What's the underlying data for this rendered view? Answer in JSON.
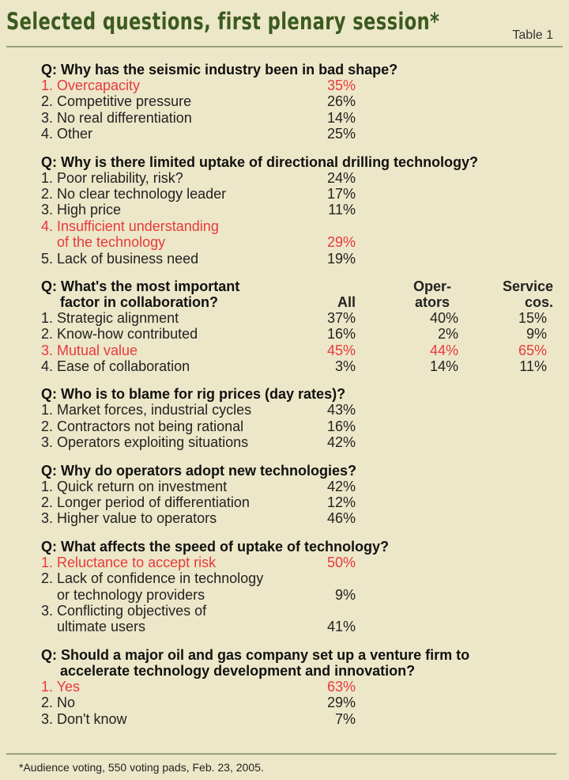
{
  "title": "Selected questions, first plenary session*",
  "table_label": "Table 1",
  "footnote": "*Audience voting, 550 voting pads, Feb. 23, 2005.",
  "q1": {
    "question": "Q: Why has the seismic industry been in bad shape?",
    "rows": [
      {
        "label": "1. Overcapacity",
        "value": "35%"
      },
      {
        "label": "2. Competitive pressure",
        "value": "26%"
      },
      {
        "label": "3. No real differentiation",
        "value": "14%"
      },
      {
        "label": "4. Other",
        "value": "25%"
      }
    ]
  },
  "q2": {
    "question": "Q: Why is there limited uptake of directional drilling technology?",
    "rows": [
      {
        "label": "1. Poor reliability, risk?",
        "value": "24%"
      },
      {
        "label": "2. No clear technology leader",
        "value": "17%"
      },
      {
        "label": "3. High price",
        "value": "11%"
      },
      {
        "label": "4. Insufficient understanding",
        "value": ""
      },
      {
        "label": "    of the technology",
        "value": "29%"
      },
      {
        "label": "5. Lack of business need",
        "value": "19%"
      }
    ]
  },
  "q3": {
    "question_line1": "Q: What's the most important",
    "question_line2": "factor in collaboration?",
    "col_all": "All",
    "col_operators_1": "Oper-",
    "col_operators_2": "ators",
    "col_service_1": "Service",
    "col_service_2": "cos.",
    "rows": [
      {
        "label": "1. Strategic alignment",
        "all": "37%",
        "operators": "40%",
        "service": "15%"
      },
      {
        "label": "2. Know-how contributed",
        "all": "16%",
        "operators": "2%",
        "service": "9%"
      },
      {
        "label": "3. Mutual value",
        "all": "45%",
        "operators": "44%",
        "service": "65%"
      },
      {
        "label": "4. Ease of collaboration",
        "all": "3%",
        "operators": "14%",
        "service": "11%"
      }
    ]
  },
  "q4": {
    "question": "Q: Who is to blame for rig prices (day rates)?",
    "rows": [
      {
        "label": "1. Market forces, industrial cycles",
        "value": "43%"
      },
      {
        "label": "2. Contractors not being rational",
        "value": "16%"
      },
      {
        "label": "3. Operators exploiting situations",
        "value": "42%"
      }
    ]
  },
  "q5": {
    "question": "Q: Why do operators adopt new technologies?",
    "rows": [
      {
        "label": "1. Quick return on investment",
        "value": "42%"
      },
      {
        "label": "2. Longer period of differentiation",
        "value": "12%"
      },
      {
        "label": "3. Higher value to operators",
        "value": "46%"
      }
    ]
  },
  "q6": {
    "question": "Q: What affects the speed of uptake of technology?",
    "rows": [
      {
        "label": "1. Reluctance to accept risk",
        "value": "50%"
      },
      {
        "label": "2. Lack of confidence in technology",
        "value": ""
      },
      {
        "label": "    or technology providers",
        "value": "9%"
      },
      {
        "label": "3. Conflicting objectives of",
        "value": ""
      },
      {
        "label": "    ultimate users",
        "value": "41%"
      }
    ]
  },
  "q7": {
    "question_line1": "Q: Should a major oil and gas company set up a venture firm to",
    "question_line2": "accelerate technology development and innovation?",
    "rows": [
      {
        "label": "1. Yes",
        "value": "63%"
      },
      {
        "label": "2. No",
        "value": "29%"
      },
      {
        "label": "3. Don't know",
        "value": "7%"
      }
    ]
  },
  "colors": {
    "highlight": "#e8393d",
    "title": "#3b5a1f"
  }
}
